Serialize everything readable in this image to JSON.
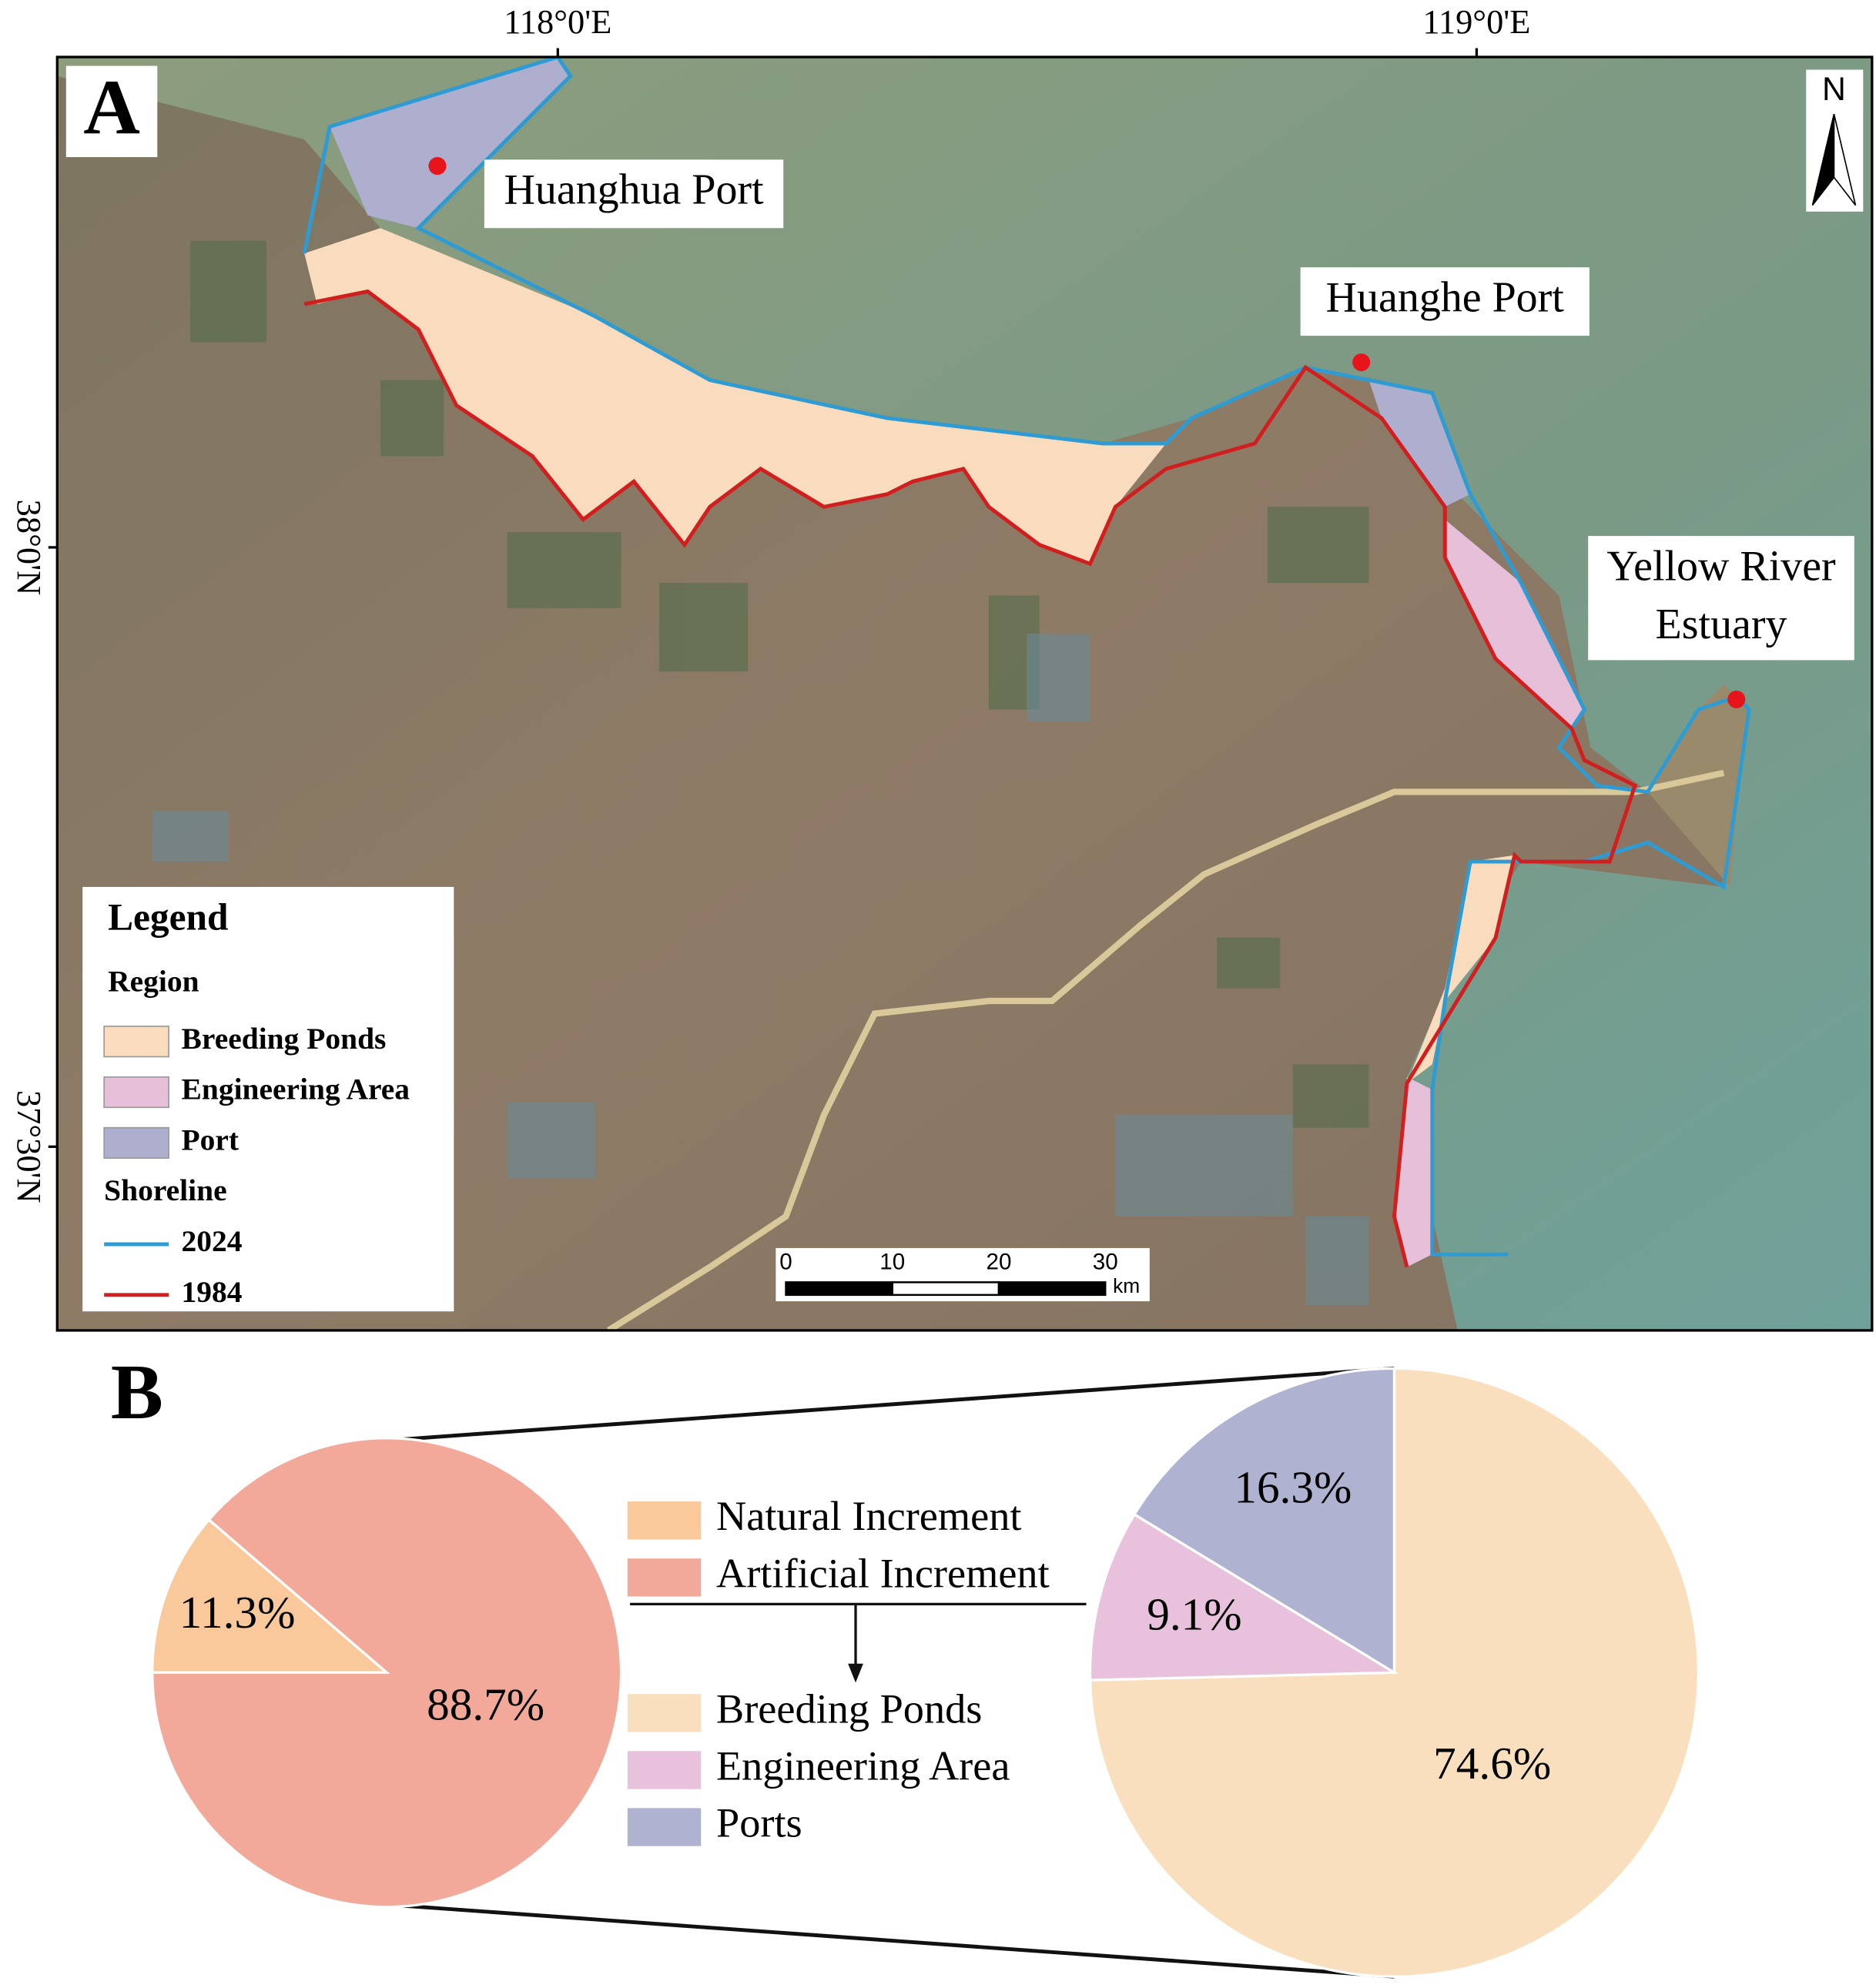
{
  "map": {
    "panel_label": "A",
    "lon_ticks": [
      "118°0'E",
      "119°0'E"
    ],
    "lat_ticks": [
      "38°0'N",
      "37°30'N"
    ],
    "places": [
      [
        "Huanghua Port"
      ],
      [
        "Huanghe Port"
      ],
      [
        "Yellow River",
        "Estuary"
      ]
    ],
    "north": "N",
    "legend": {
      "title": "Legend",
      "region_title": "Region",
      "regions": [
        {
          "name": "Breeding Ponds",
          "color": "#f8dcbd"
        },
        {
          "name": "Engineering Area",
          "color": "#e6bfd8"
        },
        {
          "name": "Port",
          "color": "#aeaecf"
        }
      ],
      "shoreline_title": "Shoreline",
      "shorelines": [
        {
          "name": "2024",
          "color": "#2e9bd3"
        },
        {
          "name": "1984",
          "color": "#d11f1f"
        }
      ]
    },
    "scale_bar": {
      "ticks": [
        0,
        10,
        20,
        30
      ],
      "unit": "km"
    }
  },
  "panel_b_label": "B",
  "chart_data": [
    {
      "type": "pie",
      "categories": [
        "Natural Increment",
        "Artificial Increment"
      ],
      "values": [
        11.3,
        88.7
      ],
      "value_labels": [
        "11.3%",
        "88.7%"
      ],
      "colors": [
        "#f9c99b",
        "#f2a99a"
      ]
    },
    {
      "type": "pie",
      "categories": [
        "Breeding Ponds",
        "Engineering Area",
        "Ports"
      ],
      "values": [
        74.6,
        9.1,
        16.3
      ],
      "value_labels": [
        "74.6%",
        "9.1%",
        "16.3%"
      ],
      "colors": [
        "#fadfbe",
        "#e8c2dc",
        "#b0b2d2"
      ]
    }
  ]
}
